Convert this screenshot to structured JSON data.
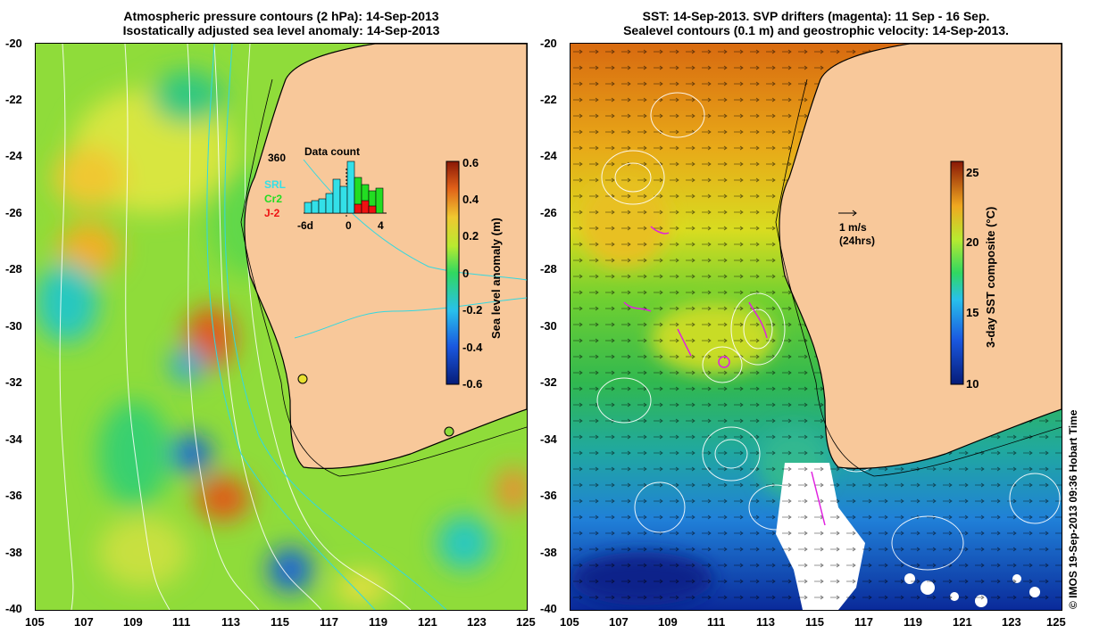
{
  "left_panel": {
    "title_line1": "Atmospheric pressure contours (2 hPa): 14-Sep-2013",
    "title_line2": "Isostatically adjusted sea level anomaly: 14-Sep-2013",
    "colorbar": {
      "label": "Sea level anomaly (m)",
      "ticks": [
        "0.6",
        "0.4",
        "0.2",
        "0",
        "-0.2",
        "-0.4",
        "-0.6"
      ]
    },
    "inset": {
      "title": "Data count",
      "ymax_label": "360",
      "xticks": [
        "-6d",
        "0",
        "4"
      ],
      "legend": [
        {
          "label": "SRL",
          "color": "#33e0e8"
        },
        {
          "label": "Cr2",
          "color": "#22dd22"
        },
        {
          "label": "J-2",
          "color": "#ee1111"
        }
      ]
    }
  },
  "right_panel": {
    "title_line1": "SST: 14-Sep-2013. SVP drifters (magenta): 11 Sep - 16 Sep.",
    "title_line2": "Sealevel contours (0.1 m) and geostrophic velocity: 14-Sep-2013.",
    "colorbar": {
      "label": "3-day SST composite (°C)",
      "ticks": [
        "25",
        "20",
        "15",
        "10"
      ]
    },
    "scale_arrow": {
      "line1": "1 m/s",
      "line2": "(24hrs)"
    }
  },
  "axes": {
    "lat_labels": [
      "-20",
      "-22",
      "-24",
      "-26",
      "-28",
      "-30",
      "-32",
      "-34",
      "-36",
      "-38",
      "-40"
    ],
    "lon_labels": [
      "105",
      "107",
      "109",
      "111",
      "113",
      "115",
      "117",
      "119",
      "121",
      "123",
      "125"
    ]
  },
  "credit": "© IMOS 19-Sep-2013 09:36 Hobart Time",
  "colors": {
    "land": "#f8c89a",
    "coast": "#000000"
  }
}
